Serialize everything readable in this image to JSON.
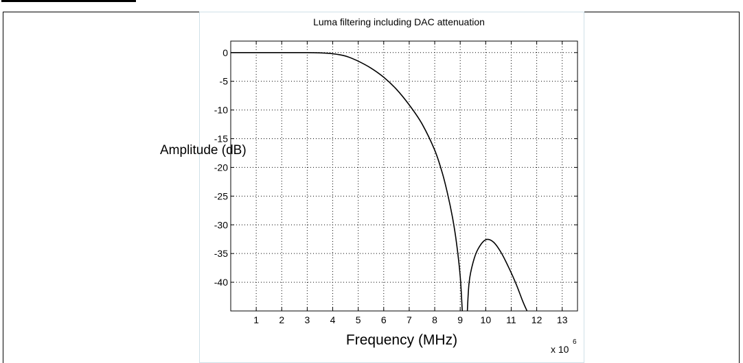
{
  "chart_data": {
    "type": "line",
    "title": "Luma filtering including DAC attenuation",
    "xlabel": "Frequency (MHz)",
    "ylabel": "Amplitude (dB)",
    "x_multiplier": "x 10",
    "x_multiplier_exp": "6",
    "xlim": [
      0,
      13.6
    ],
    "ylim": [
      -45,
      2
    ],
    "x_ticks": [
      "1",
      "2",
      "3",
      "4",
      "5",
      "6",
      "7",
      "8",
      "9",
      "10",
      "11",
      "12",
      "13"
    ],
    "y_ticks": [
      "0",
      "-5",
      "-10",
      "-15",
      "-20",
      "-25",
      "-30",
      "-35",
      "-40"
    ],
    "grid": true,
    "series": [
      {
        "values": [
          [
            0,
            0
          ],
          [
            1,
            0
          ],
          [
            2,
            0
          ],
          [
            3,
            0
          ],
          [
            3.5,
            -0.05
          ],
          [
            4,
            -0.2
          ],
          [
            4.5,
            -0.6
          ],
          [
            5,
            -1.5
          ],
          [
            5.5,
            -2.7
          ],
          [
            6,
            -4.3
          ],
          [
            6.5,
            -6.4
          ],
          [
            7,
            -9.1
          ],
          [
            7.5,
            -12.4
          ],
          [
            8,
            -17.0
          ],
          [
            8.3,
            -21.0
          ],
          [
            8.5,
            -24.5
          ],
          [
            8.7,
            -28.8
          ],
          [
            8.85,
            -33.0
          ],
          [
            9.0,
            -39.0
          ],
          [
            9.08,
            -45
          ],
          null,
          [
            9.28,
            -45
          ],
          [
            9.35,
            -40.0
          ],
          [
            9.5,
            -36.6
          ],
          [
            9.7,
            -34.2
          ],
          [
            10.0,
            -32.6
          ],
          [
            10.3,
            -33.0
          ],
          [
            10.6,
            -34.8
          ],
          [
            10.9,
            -37.4
          ],
          [
            11.2,
            -40.4
          ],
          [
            11.45,
            -43.3
          ],
          [
            11.62,
            -45
          ]
        ]
      }
    ]
  }
}
